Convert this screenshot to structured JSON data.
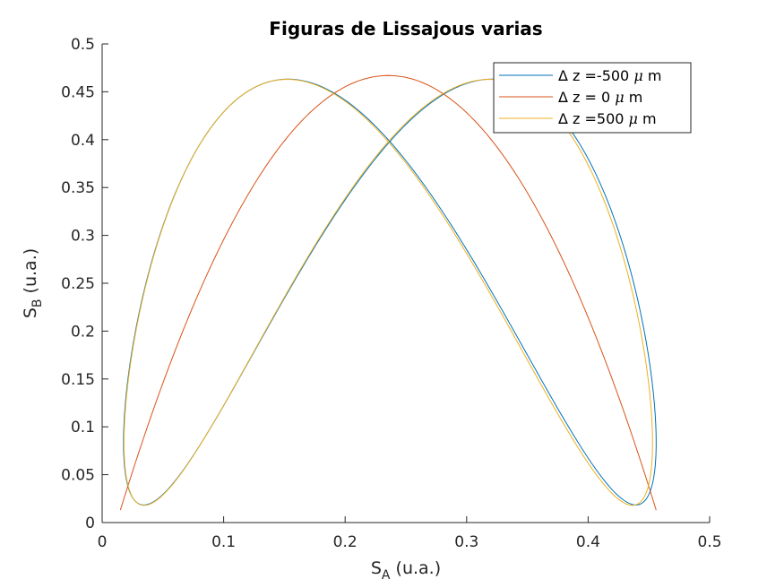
{
  "chart_data": {
    "type": "line",
    "title": "Figuras de Lissajous varias",
    "xlabel": {
      "main": "S",
      "sub": "A",
      "suffix": " (u.a.)"
    },
    "ylabel": {
      "main": "S",
      "sub": "B",
      "suffix": " (u.a.)"
    },
    "xlim": [
      0,
      0.5
    ],
    "ylim": [
      0,
      0.5
    ],
    "x_ticks": [
      "0",
      "0.1",
      "0.2",
      "0.3",
      "0.4",
      "0.5"
    ],
    "y_ticks": [
      "0",
      "0.05",
      "0.1",
      "0.15",
      "0.2",
      "0.25",
      "0.3",
      "0.35",
      "0.4",
      "0.45",
      "0.5"
    ],
    "grid": false,
    "legend_position": "top-right",
    "series": [
      {
        "name": "Δ z =-500 μ m",
        "legend": {
          "pre": "Δ z =-500 ",
          "mu": "μ",
          "post": " m"
        },
        "color": "#0072BD",
        "x_center": 0.2368,
        "x_amplitude": 0.2192,
        "y_center": 0.2408,
        "y_amplitude": 0.2224,
        "phase_deg": 45
      },
      {
        "name": "Δ z = 0 μ m",
        "legend": {
          "pre": "Δ z = 0 ",
          "mu": "μ",
          "post": " m"
        },
        "color": "#D95319",
        "x_center": 0.2355,
        "x_amplitude": 0.2205,
        "y_center": 0.24,
        "y_amplitude": 0.227,
        "phase_deg": 90
      },
      {
        "name": "Δ z =500 μ m",
        "legend": {
          "pre": "Δ z =500 ",
          "mu": "μ",
          "post": " m"
        },
        "color": "#EDB120",
        "x_center": 0.2355,
        "x_amplitude": 0.2175,
        "y_center": 0.2405,
        "y_amplitude": 0.2225,
        "phase_deg": 135
      }
    ]
  }
}
